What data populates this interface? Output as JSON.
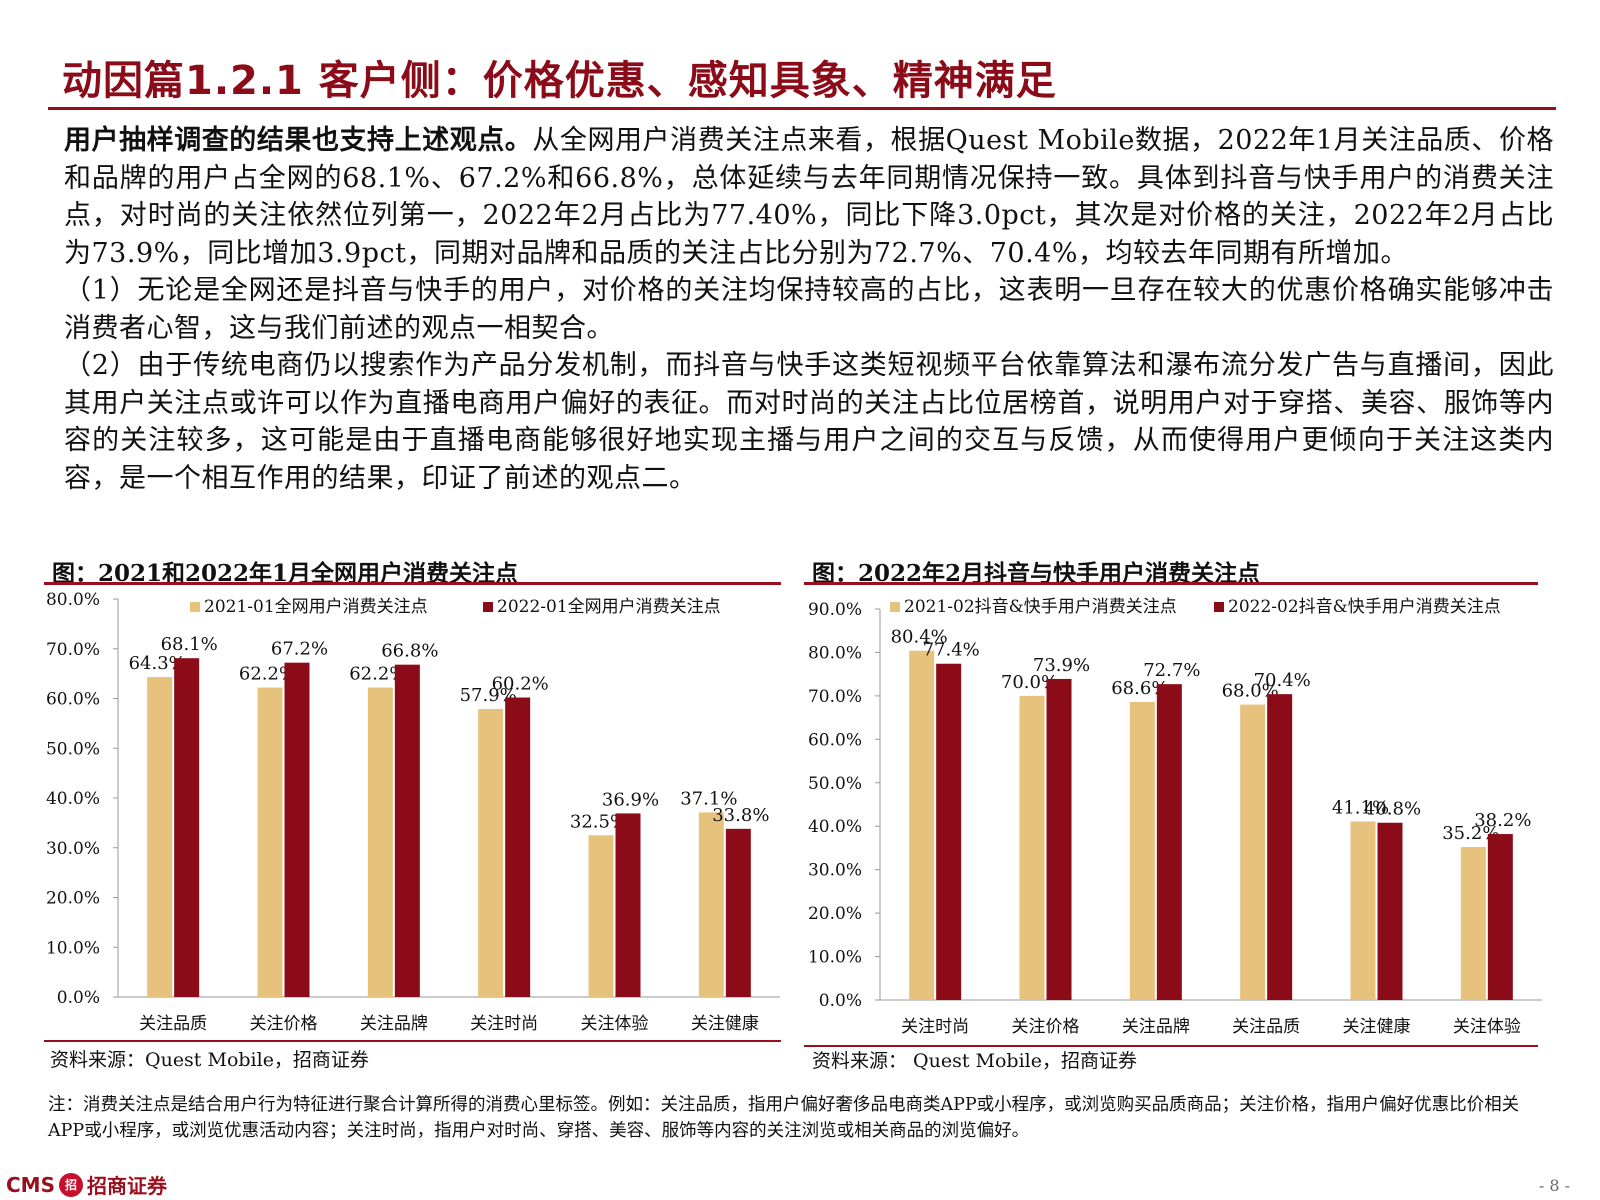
{
  "slide": {
    "title": "动因篇1.2.1 客户侧：价格优惠、感知具象、精神满足",
    "lead_bold": "用户抽样调查的结果也支持上述观点。",
    "para1": "从全网用户消费关注点来看，根据Quest Mobile数据，2022年1月关注品质、价格和品牌的用户占全网的68.1%、67.2%和66.8%，总体延续与去年同期情况保持一致。具体到抖音与快手用户的消费关注点，对时尚的关注依然位列第一，2022年2月占比为77.40%，同比下降3.0pct，其次是对价格的关注，2022年2月占比为73.9%，同比增加3.9pct，同期对品牌和品质的关注占比分别为72.7%、70.4%，均较去年同期有所增加。",
    "para2": "（1）无论是全网还是抖音与快手的用户，对价格的关注均保持较高的占比，这表明一旦存在较大的优惠价格确实能够冲击消费者心智，这与我们前述的观点一相契合。",
    "para3": "（2）由于传统电商仍以搜索作为产品分发机制，而抖音与快手这类短视频平台依靠算法和瀑布流分发广告与直播间，因此其用户关注点或许可以作为直播电商用户偏好的表征。而对时尚的关注占比位居榜首，说明用户对于穿搭、美容、服饰等内容的关注较多，这可能是由于直播电商能够很好地实现主播与用户之间的交互与反馈，从而使得用户更倾向于关注这类内容，是一个相互作用的结果，印证了前述的观点二。",
    "fig1_title": "图：2021和2022年1月全网用户消费关注点",
    "fig2_title": "图：2022年2月抖音与快手用户消费关注点",
    "source1": "资料来源：Quest Mobile，招商证券",
    "source2": "资料来源： Quest Mobile，招商证券",
    "note": "注：消费关注点是结合用户行为特征进行聚合计算所得的消费心里标签。例如：关注品质，指用户偏好奢侈品电商类APP或小程序，或浏览购买品质商品；关注价格，指用户偏好优惠比价相关APP或小程序，或浏览优惠活动内容；关注时尚，指用户对时尚、穿搭、美容、服饰等内容的关注浏览或相关商品的浏览偏好。",
    "logo_latin": "CMS",
    "logo_mark": "招",
    "logo_cn": "招商证券",
    "page_number": "- 8 -"
  },
  "colors": {
    "accent": "#9b0f1d",
    "series_light": "#e6c27c",
    "series_dark": "#8b0b18"
  },
  "chart_data": [
    {
      "type": "bar",
      "categories": [
        "关注品质",
        "关注价格",
        "关注品牌",
        "关注时尚",
        "关注体验",
        "关注健康"
      ],
      "series": [
        {
          "name": "2021-01全网用户消费关注点",
          "values": [
            64.3,
            62.2,
            62.2,
            57.9,
            32.5,
            37.1
          ],
          "labels": [
            "64.3%",
            "62.2%",
            "62.2%",
            "57.9%",
            "32.5%",
            "37.1%"
          ]
        },
        {
          "name": "2022-01全网用户消费关注点",
          "values": [
            68.1,
            67.2,
            66.8,
            60.2,
            36.9,
            33.8
          ],
          "labels": [
            "68.1%",
            "67.2%",
            "66.8%",
            "60.2%",
            "36.9%",
            "33.8%"
          ]
        }
      ],
      "ylim": [
        0,
        80
      ],
      "yticks": [
        "0.0%",
        "10.0%",
        "20.0%",
        "30.0%",
        "40.0%",
        "50.0%",
        "60.0%",
        "70.0%",
        "80.0%"
      ],
      "legend": "top"
    },
    {
      "type": "bar",
      "categories": [
        "关注时尚",
        "关注价格",
        "关注品牌",
        "关注品质",
        "关注健康",
        "关注体验"
      ],
      "series": [
        {
          "name": "2021-02抖音&快手用户消费关注点",
          "values": [
            80.4,
            70.0,
            68.6,
            68.0,
            41.1,
            35.2
          ],
          "labels": [
            "80.4%",
            "70.0%",
            "68.6%",
            "68.0%",
            "41.1%",
            "35.2%"
          ]
        },
        {
          "name": "2022-02抖音&快手用户消费关注点",
          "values": [
            77.4,
            73.9,
            72.7,
            70.4,
            40.8,
            38.2
          ],
          "labels": [
            "77.4%",
            "73.9%",
            "72.7%",
            "70.4%",
            "40.8%",
            "38.2%"
          ]
        }
      ],
      "ylim": [
        0,
        90
      ],
      "yticks": [
        "0.0%",
        "10.0%",
        "20.0%",
        "30.0%",
        "40.0%",
        "50.0%",
        "60.0%",
        "70.0%",
        "80.0%",
        "90.0%"
      ],
      "legend": "top"
    }
  ]
}
